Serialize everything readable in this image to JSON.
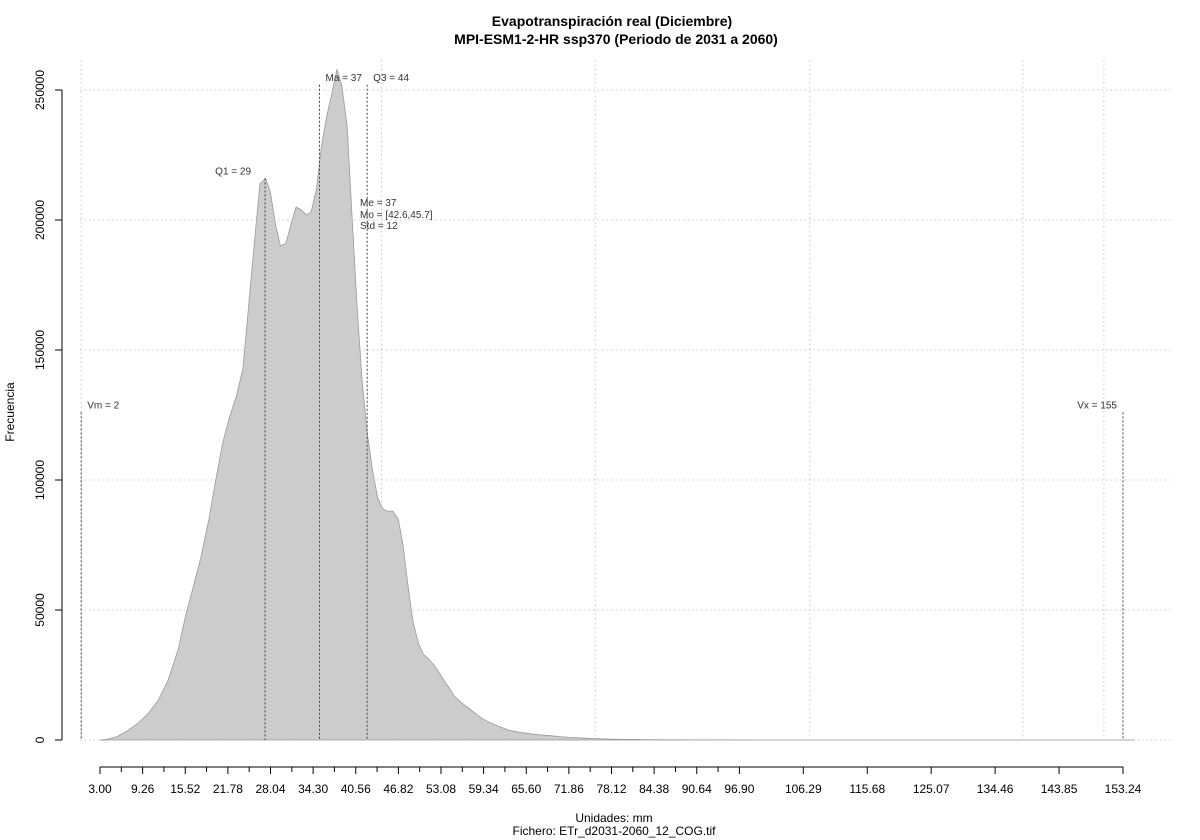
{
  "chart_data": {
    "type": "area",
    "title": "Evapotranspiración real (Diciembre)",
    "subtitle": "MPI-ESM1-2-HR ssp370 (Periodo de 2031 a 2060)",
    "xlabel": "Unidades: mm",
    "footer": "Fichero: ETr_d2031-2060_12_COG.tif",
    "ylabel": "Frecuencia",
    "fill_color": "#cccccc",
    "outline_color": "#9a9a9a",
    "xlim": [
      0.9,
      157.2
    ],
    "ylim": [
      0,
      262000
    ],
    "x_ticks": [
      3.0,
      9.26,
      15.52,
      21.78,
      28.04,
      34.3,
      40.56,
      46.82,
      53.08,
      59.34,
      65.6,
      71.86,
      78.12,
      84.38,
      90.64,
      96.9,
      106.29,
      115.68,
      125.07,
      134.46,
      143.85,
      153.24
    ],
    "x_tick_labels": [
      "3.00",
      "9.26",
      "15.52",
      "21.78",
      "28.04",
      "34.30",
      "40.56",
      "46.82",
      "53.08",
      "59.34",
      "65.60",
      "71.86",
      "78.12",
      "84.38",
      "90.64",
      "96.90",
      "106.29",
      "115.68",
      "125.07",
      "134.46",
      "143.85",
      "153.24"
    ],
    "x_minor_ticks": [
      6.13,
      12.39,
      18.65,
      24.91,
      31.17,
      37.43,
      43.69,
      49.95,
      56.21,
      62.47,
      68.73,
      74.99,
      81.25,
      87.51,
      93.77
    ],
    "y_ticks": [
      0,
      50000,
      100000,
      150000,
      200000,
      250000
    ],
    "y_tick_labels": [
      "0",
      "50000",
      "100000",
      "150000",
      "200000",
      "250000"
    ],
    "x_grid": [
      3.0,
      9.26,
      15.52,
      21.78,
      28.04,
      34.3,
      40.56,
      46.82,
      53.08,
      59.34,
      65.6,
      71.86,
      78.12,
      84.38,
      90.64,
      96.9,
      106.29,
      115.68,
      125.07,
      134.46,
      143.85,
      153.24
    ],
    "x_grid_major": [
      3.0,
      9.26,
      15.52,
      21.78,
      28.04,
      34.3,
      40.56,
      46.82,
      53.08,
      59.34,
      65.6,
      71.86,
      78.12,
      84.38,
      90.64,
      96.9,
      106.29,
      115.68,
      125.07,
      134.46,
      143.85,
      153.24
    ],
    "grid_x": [
      2.0,
      46.1,
      77.5,
      109.0,
      140.3,
      152.2
    ],
    "grid_y": [
      0,
      50000,
      100000,
      150000,
      200000,
      250000
    ],
    "x": [
      3.0,
      4.0,
      5.5,
      7.0,
      8.5,
      10.0,
      11.5,
      13.0,
      14.5,
      15.5,
      16.5,
      17.8,
      19.0,
      20.0,
      21.0,
      22.0,
      23.0,
      24.0,
      25.0,
      25.8,
      26.5,
      27.3,
      28.0,
      28.8,
      29.5,
      30.3,
      31.0,
      31.8,
      32.5,
      33.3,
      34.0,
      34.8,
      35.5,
      36.3,
      37.0,
      37.8,
      38.5,
      39.3,
      40.0,
      40.8,
      41.5,
      42.3,
      43.0,
      43.8,
      44.5,
      45.2,
      46.0,
      46.8,
      47.5,
      48.3,
      49.0,
      49.8,
      50.5,
      51.3,
      52.0,
      52.8,
      53.5,
      54.3,
      55.0,
      56.0,
      57.0,
      58.0,
      59.0,
      60.0,
      61.0,
      62.0,
      63.0,
      64.5,
      66.0,
      67.5,
      69.0,
      70.5,
      72.0,
      73.5,
      75.0,
      76.5,
      78.0,
      80.0,
      82.0,
      84.0,
      86.0,
      88.0,
      90.0,
      92.0,
      95.0,
      100.0,
      110.0,
      120.0,
      130.0,
      140.0,
      150.0,
      155.0
    ],
    "y": [
      0,
      300,
      1300,
      3500,
      6300,
      10000,
      15000,
      23000,
      35000,
      47000,
      57000,
      70000,
      85000,
      100000,
      114000,
      124000,
      132000,
      143000,
      172000,
      195000,
      214000,
      216000,
      211000,
      198000,
      190000,
      191000,
      198000,
      205000,
      204000,
      202000,
      203000,
      212000,
      228000,
      240000,
      248000,
      258000,
      252000,
      236000,
      202000,
      165000,
      138000,
      117000,
      104000,
      93000,
      89000,
      88000,
      88000,
      85000,
      75000,
      58000,
      45000,
      37000,
      33000,
      31000,
      29000,
      26000,
      23000,
      20000,
      17000,
      14500,
      12500,
      10500,
      8500,
      7000,
      5800,
      4800,
      3800,
      3000,
      2500,
      2000,
      1700,
      1300,
      1000,
      800,
      600,
      450,
      350,
      250,
      200,
      150,
      100,
      80,
      50,
      30,
      20,
      10,
      5,
      3,
      2,
      1,
      0,
      0
    ],
    "markers": [
      {
        "label": "Vm = 2",
        "x": 2.0,
        "y_top": 126000
      },
      {
        "label": "Q1 = 29",
        "x": 29.0,
        "y_top": 216000
      },
      {
        "label": "Ma = 37",
        "x": 37.0,
        "y_top": 252000
      },
      {
        "label": "Q3 = 44",
        "x": 44.0,
        "y_top": 252000
      },
      {
        "label": "Vx = 155",
        "x": 155.0,
        "y_top": 126000
      }
    ],
    "stats": [
      "Me = 37",
      "Mo = [42.6,45.7]",
      "Std = 12"
    ]
  }
}
